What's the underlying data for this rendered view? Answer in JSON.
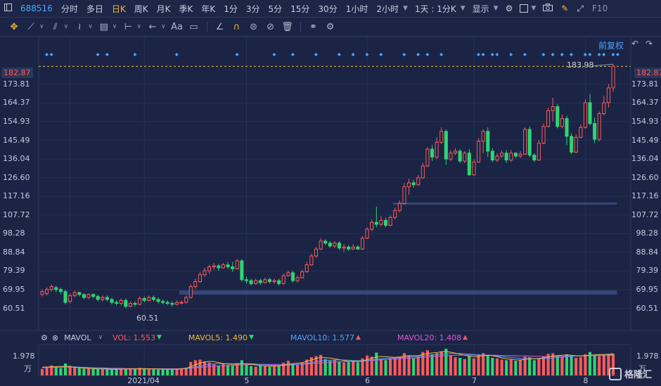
{
  "topbar": {
    "code": "688516",
    "periods": [
      "分时",
      "多日",
      "日K",
      "周K",
      "月K",
      "季K",
      "年K",
      "1分",
      "3分",
      "5分",
      "15分",
      "30分",
      "1小时",
      "2小时"
    ],
    "active_period": "日K",
    "combo": "1天 : 1分K",
    "display": "显示",
    "f10": "F10"
  },
  "toolbar": {
    "text_tool": "Aa"
  },
  "chart": {
    "restore_label": "前复权",
    "current_price_left": "182.87",
    "current_price_right": "182.87",
    "high_label": "183.98",
    "low_label": "60.51",
    "y_ticks": [
      "173.81",
      "164.37",
      "154.93",
      "145.49",
      "136.04",
      "126.60",
      "117.16",
      "107.72",
      "98.28",
      "88.84",
      "79.39",
      "69.95",
      "60.51"
    ],
    "x_ticks": [
      "2021/04",
      "5",
      "6",
      "7",
      "8"
    ]
  },
  "indicator": {
    "name": "MAVOL",
    "vol": "VOL: 1.553",
    "mavol5": "MAVOL5: 1.490",
    "mavol10": "MAVOL10: 1.577",
    "mavol20": "MAVOL20: 1.408",
    "vol_axis_value": "1.978",
    "vol_axis_unit": "万",
    "colors": {
      "vol": "#ff5a5a",
      "mavol5": "#f0b83c",
      "mavol10": "#4aa4ff",
      "mavol20": "#e056d8"
    }
  },
  "watermark": "格隆汇",
  "chart_data": {
    "type": "candlestick",
    "ylim": [
      55,
      188
    ],
    "candles": [
      [
        67.5,
        69,
        66.5,
        70
      ],
      [
        68,
        70,
        67,
        71
      ],
      [
        70,
        71.5,
        69,
        72.5
      ],
      [
        71,
        70,
        68.5,
        72
      ],
      [
        70,
        69,
        67.5,
        71
      ],
      [
        69,
        63.5,
        62.5,
        70
      ],
      [
        64,
        67,
        63,
        68
      ],
      [
        67,
        68.5,
        66,
        69.5
      ],
      [
        68.5,
        67.5,
        66.5,
        69
      ],
      [
        67.5,
        66,
        65,
        68
      ],
      [
        66,
        67.5,
        65,
        68
      ],
      [
        67.5,
        66.5,
        65.5,
        68
      ],
      [
        66.5,
        65,
        64,
        67.5
      ],
      [
        65,
        66,
        64,
        67
      ],
      [
        66,
        65,
        64,
        67
      ],
      [
        65,
        63.5,
        62.5,
        66
      ],
      [
        63.5,
        63,
        62,
        64.5
      ],
      [
        63,
        64.5,
        62,
        65.5
      ],
      [
        64.5,
        61.5,
        60.51,
        65.5
      ],
      [
        61.5,
        63,
        61,
        64
      ],
      [
        63,
        62.5,
        61.5,
        64
      ],
      [
        62.5,
        65.5,
        62,
        66.5
      ],
      [
        65.5,
        64.5,
        63.5,
        66.5
      ],
      [
        64.5,
        66,
        64,
        67
      ],
      [
        66,
        65,
        64,
        67
      ],
      [
        65,
        64,
        63,
        66
      ],
      [
        64,
        63.5,
        62.5,
        65
      ],
      [
        63.5,
        63,
        62,
        64.5
      ],
      [
        63,
        62.5,
        61.5,
        64
      ],
      [
        62.5,
        63.5,
        62,
        64.5
      ],
      [
        63.5,
        63.5,
        62.5,
        64.5
      ],
      [
        63.5,
        66,
        63,
        67
      ],
      [
        66,
        71.5,
        65.5,
        72.5
      ],
      [
        71.5,
        74,
        70.5,
        75.5
      ],
      [
        74,
        77.5,
        73.5,
        79
      ],
      [
        77.5,
        79.5,
        76.5,
        81
      ],
      [
        79.5,
        81.5,
        78,
        82.5
      ],
      [
        81.5,
        82,
        80,
        83.5
      ],
      [
        82,
        81,
        79.5,
        83
      ],
      [
        81,
        82.5,
        80.5,
        83.5
      ],
      [
        82.5,
        81.5,
        80.5,
        84
      ],
      [
        81.5,
        80.5,
        79,
        84
      ],
      [
        80.5,
        84.5,
        80,
        85.5
      ],
      [
        84.5,
        75,
        74,
        85.5
      ],
      [
        75,
        74.5,
        73,
        76.5
      ],
      [
        74.5,
        73,
        72,
        75.5
      ],
      [
        73,
        74.5,
        72.5,
        75.5
      ],
      [
        74.5,
        73.5,
        72.5,
        75.5
      ],
      [
        73.5,
        75,
        73,
        76
      ],
      [
        75,
        74,
        73,
        76
      ],
      [
        74,
        74.5,
        73,
        75.5
      ],
      [
        74.5,
        73,
        72,
        75.5
      ],
      [
        73,
        77,
        72.5,
        78
      ],
      [
        77,
        78.5,
        76.5,
        79.5
      ],
      [
        78.5,
        74.5,
        73.5,
        79.5
      ],
      [
        74.5,
        76,
        73.5,
        77
      ],
      [
        76,
        79,
        75.5,
        80
      ],
      [
        79,
        82.5,
        78.5,
        84
      ],
      [
        82.5,
        87,
        82,
        88
      ],
      [
        87,
        90.5,
        86,
        91.5
      ],
      [
        90.5,
        94.5,
        90,
        96
      ],
      [
        94.5,
        93.5,
        92.5,
        95.5
      ],
      [
        93.5,
        92,
        91,
        94.5
      ],
      [
        92,
        93.5,
        91,
        94.5
      ],
      [
        93.5,
        91,
        90,
        94.5
      ],
      [
        91,
        91.5,
        89,
        93
      ],
      [
        91.5,
        90.5,
        89.5,
        92.5
      ],
      [
        90.5,
        91.5,
        90,
        93
      ],
      [
        91.5,
        90.5,
        90,
        92.5
      ],
      [
        90.5,
        96,
        90,
        97
      ],
      [
        96,
        100.5,
        95.5,
        101.5
      ],
      [
        100.5,
        104,
        99.5,
        105.5
      ],
      [
        104,
        103,
        101.5,
        112
      ],
      [
        103,
        105,
        102,
        107
      ],
      [
        105,
        102.5,
        101.5,
        106.5
      ],
      [
        102.5,
        106.5,
        102,
        107.5
      ],
      [
        106.5,
        110,
        105.5,
        111.5
      ],
      [
        110,
        113.5,
        109,
        115
      ],
      [
        113.5,
        122,
        113,
        124
      ],
      [
        122,
        124,
        118,
        126
      ],
      [
        124,
        123,
        121.5,
        125.5
      ],
      [
        123,
        126.5,
        122.5,
        128
      ],
      [
        126.5,
        132.5,
        126,
        134
      ],
      [
        132.5,
        141,
        132,
        142
      ],
      [
        141,
        137,
        135,
        143
      ],
      [
        137,
        144.5,
        136,
        147
      ],
      [
        144.5,
        150,
        143.5,
        152
      ],
      [
        150,
        136,
        133,
        151
      ],
      [
        136,
        139,
        135,
        140.5
      ],
      [
        139,
        140,
        138,
        141.5
      ],
      [
        140,
        135,
        134,
        141
      ],
      [
        135,
        139,
        134,
        140
      ],
      [
        139,
        128,
        127.5,
        141
      ],
      [
        128,
        134.5,
        127.5,
        136
      ],
      [
        134.5,
        145,
        134,
        146.5
      ],
      [
        145,
        150,
        139,
        151
      ],
      [
        150,
        140,
        137,
        152
      ],
      [
        140,
        135.5,
        134.5,
        141.5
      ],
      [
        135.5,
        137.5,
        134.5,
        139
      ],
      [
        137.5,
        139,
        136.5,
        140.5
      ],
      [
        139,
        135.5,
        134,
        140.5
      ],
      [
        135.5,
        139,
        134.5,
        140.5
      ],
      [
        139,
        137.5,
        136.5,
        139.5
      ],
      [
        137.5,
        138.5,
        136.5,
        140
      ],
      [
        138.5,
        151,
        138,
        152
      ],
      [
        151,
        138,
        137,
        152.5
      ],
      [
        138,
        135.5,
        134.5,
        139
      ],
      [
        135.5,
        144,
        135,
        145.5
      ],
      [
        144,
        152.5,
        143.5,
        154
      ],
      [
        152.5,
        160.5,
        152,
        162
      ],
      [
        160.5,
        162.5,
        155,
        167
      ],
      [
        162.5,
        152.5,
        151.5,
        164
      ],
      [
        152.5,
        156.5,
        151.5,
        158.5
      ],
      [
        156.5,
        147.5,
        143,
        158
      ],
      [
        147.5,
        139.5,
        138.5,
        149
      ],
      [
        139.5,
        147,
        139,
        148.5
      ],
      [
        147,
        152,
        146.5,
        153.5
      ],
      [
        152,
        164.5,
        151.5,
        166
      ],
      [
        164.5,
        154,
        153,
        169
      ],
      [
        154,
        146,
        144,
        157
      ],
      [
        146,
        159,
        145,
        160
      ],
      [
        159,
        164.5,
        158,
        168
      ],
      [
        164.5,
        172,
        162,
        174
      ],
      [
        172,
        182.87,
        170,
        183.98
      ]
    ],
    "volumes": [
      0.25,
      0.38,
      0.55,
      0.45,
      0.33,
      0.72,
      0.52,
      0.38,
      0.34,
      0.28,
      0.3,
      0.26,
      0.24,
      0.22,
      0.22,
      0.24,
      0.21,
      0.26,
      0.3,
      0.23,
      0.22,
      0.35,
      0.26,
      0.24,
      0.23,
      0.2,
      0.22,
      0.2,
      0.19,
      0.22,
      0.28,
      0.35,
      0.85,
      1.0,
      1.05,
      0.9,
      0.8,
      0.65,
      0.55,
      0.7,
      0.6,
      0.55,
      0.75,
      1.0,
      0.6,
      0.5,
      0.45,
      0.55,
      0.5,
      0.45,
      0.48,
      0.55,
      0.78,
      0.95,
      0.72,
      0.62,
      0.8,
      1.05,
      1.25,
      1.35,
      1.45,
      1.1,
      0.95,
      1.0,
      0.9,
      0.8,
      0.85,
      0.9,
      0.82,
      1.15,
      1.4,
      1.3,
      1.65,
      1.1,
      1.0,
      1.15,
      1.25,
      1.3,
      1.6,
      1.4,
      1.2,
      1.3,
      1.7,
      1.85,
      1.5,
      1.6,
      1.75,
      1.978,
      1.4,
      1.25,
      1.2,
      1.1,
      1.35,
      1.15,
      1.5,
      1.6,
      1.45,
      1.2,
      1.15,
      1.05,
      1.0,
      1.05,
      0.95,
      1.0,
      1.3,
      1.25,
      1.0,
      1.15,
      1.35,
      1.55,
      1.6,
      1.4,
      1.3,
      1.5,
      1.35,
      1.2,
      1.25,
      1.5,
      1.7,
      1.45,
      1.35,
      1.45,
      1.55,
      1.553
    ],
    "mavol5": [
      0.4,
      0.42,
      0.44,
      0.45,
      0.47,
      0.48,
      0.45,
      0.4,
      0.36,
      0.33,
      0.3,
      0.28,
      0.26,
      0.25,
      0.24,
      0.23,
      0.23,
      0.24,
      0.25,
      0.25,
      0.26,
      0.27,
      0.28,
      0.27,
      0.26,
      0.25,
      0.24,
      0.23,
      0.22,
      0.22,
      0.25,
      0.32,
      0.45,
      0.6,
      0.75,
      0.85,
      0.9,
      0.88,
      0.8,
      0.72,
      0.68,
      0.65,
      0.66,
      0.7,
      0.68,
      0.64,
      0.6,
      0.56,
      0.52,
      0.5,
      0.5,
      0.52,
      0.58,
      0.65,
      0.7,
      0.75,
      0.8,
      0.9,
      1.02,
      1.15,
      1.25,
      1.22,
      1.18,
      1.12,
      1.05,
      0.98,
      0.92,
      0.9,
      0.88,
      0.95,
      1.05,
      1.15,
      1.28,
      1.32,
      1.3,
      1.28,
      1.25,
      1.27,
      1.35,
      1.4,
      1.38,
      1.4,
      1.48,
      1.58,
      1.62,
      1.65,
      1.72,
      1.75,
      1.68,
      1.6,
      1.52,
      1.42,
      1.35,
      1.3,
      1.32,
      1.38,
      1.42,
      1.38,
      1.3,
      1.2,
      1.12,
      1.08,
      1.04,
      1.02,
      1.08,
      1.12,
      1.12,
      1.15,
      1.2,
      1.28,
      1.35,
      1.4,
      1.42,
      1.45,
      1.42,
      1.38,
      1.35,
      1.38,
      1.42,
      1.45,
      1.48,
      1.48,
      1.5,
      1.49
    ],
    "mavol10": [
      0.38,
      0.4,
      0.41,
      0.42,
      0.43,
      0.44,
      0.44,
      0.43,
      0.41,
      0.39,
      0.37,
      0.35,
      0.33,
      0.31,
      0.29,
      0.28,
      0.27,
      0.26,
      0.25,
      0.25,
      0.25,
      0.25,
      0.26,
      0.26,
      0.26,
      0.26,
      0.25,
      0.25,
      0.24,
      0.24,
      0.25,
      0.28,
      0.34,
      0.42,
      0.5,
      0.58,
      0.64,
      0.68,
      0.7,
      0.7,
      0.7,
      0.7,
      0.7,
      0.71,
      0.71,
      0.7,
      0.68,
      0.65,
      0.62,
      0.59,
      0.56,
      0.55,
      0.56,
      0.58,
      0.61,
      0.64,
      0.68,
      0.73,
      0.8,
      0.87,
      0.94,
      0.98,
      1.0,
      1.02,
      1.02,
      1.02,
      1.0,
      0.98,
      0.96,
      0.96,
      0.98,
      1.02,
      1.08,
      1.12,
      1.15,
      1.18,
      1.2,
      1.22,
      1.25,
      1.28,
      1.3,
      1.32,
      1.36,
      1.4,
      1.44,
      1.48,
      1.52,
      1.56,
      1.58,
      1.58,
      1.57,
      1.55,
      1.52,
      1.48,
      1.45,
      1.44,
      1.43,
      1.4,
      1.36,
      1.32,
      1.28,
      1.24,
      1.2,
      1.16,
      1.14,
      1.13,
      1.12,
      1.12,
      1.14,
      1.17,
      1.2,
      1.23,
      1.26,
      1.3,
      1.33,
      1.36,
      1.38,
      1.4,
      1.42,
      1.44,
      1.46,
      1.48,
      1.52,
      1.577
    ],
    "mavol20": [
      0.36,
      0.37,
      0.38,
      0.39,
      0.4,
      0.4,
      0.4,
      0.4,
      0.39,
      0.38,
      0.37,
      0.36,
      0.35,
      0.34,
      0.33,
      0.32,
      0.31,
      0.3,
      0.29,
      0.28,
      0.28,
      0.27,
      0.27,
      0.27,
      0.27,
      0.27,
      0.27,
      0.27,
      0.27,
      0.27,
      0.28,
      0.3,
      0.33,
      0.36,
      0.39,
      0.42,
      0.45,
      0.48,
      0.5,
      0.52,
      0.54,
      0.56,
      0.58,
      0.6,
      0.62,
      0.63,
      0.64,
      0.65,
      0.65,
      0.65,
      0.65,
      0.64,
      0.63,
      0.63,
      0.63,
      0.64,
      0.66,
      0.68,
      0.71,
      0.74,
      0.77,
      0.8,
      0.82,
      0.84,
      0.86,
      0.88,
      0.9,
      0.91,
      0.92,
      0.93,
      0.95,
      0.97,
      1.0,
      1.03,
      1.06,
      1.09,
      1.11,
      1.13,
      1.15,
      1.17,
      1.19,
      1.21,
      1.24,
      1.27,
      1.3,
      1.33,
      1.36,
      1.39,
      1.41,
      1.42,
      1.43,
      1.44,
      1.44,
      1.44,
      1.44,
      1.44,
      1.44,
      1.43,
      1.42,
      1.41,
      1.4,
      1.39,
      1.38,
      1.37,
      1.36,
      1.35,
      1.34,
      1.33,
      1.32,
      1.32,
      1.32,
      1.33,
      1.34,
      1.35,
      1.36,
      1.37,
      1.38,
      1.39,
      1.4,
      1.4,
      1.41,
      1.4,
      1.41,
      1.408
    ],
    "vol_ylim": [
      0,
      2.1
    ],
    "x_tick_indices": [
      6,
      22,
      44,
      70,
      93,
      117
    ],
    "x_tick_labels": [
      "",
      "2021/04",
      "5",
      "6",
      "7",
      "8"
    ],
    "support_lines": [
      {
        "from_index": 30,
        "to_index": 124,
        "price": 68.5
      },
      {
        "from_index": 76,
        "to_index": 124,
        "price": 113.5
      }
    ],
    "event_markers": [
      1,
      2,
      12,
      14,
      20,
      29,
      42,
      50,
      54,
      59,
      64,
      67,
      70,
      73,
      78,
      81,
      83,
      86,
      94,
      95,
      97,
      98,
      101,
      104,
      108,
      110,
      112,
      114,
      117,
      118,
      120,
      121,
      123,
      124
    ]
  }
}
